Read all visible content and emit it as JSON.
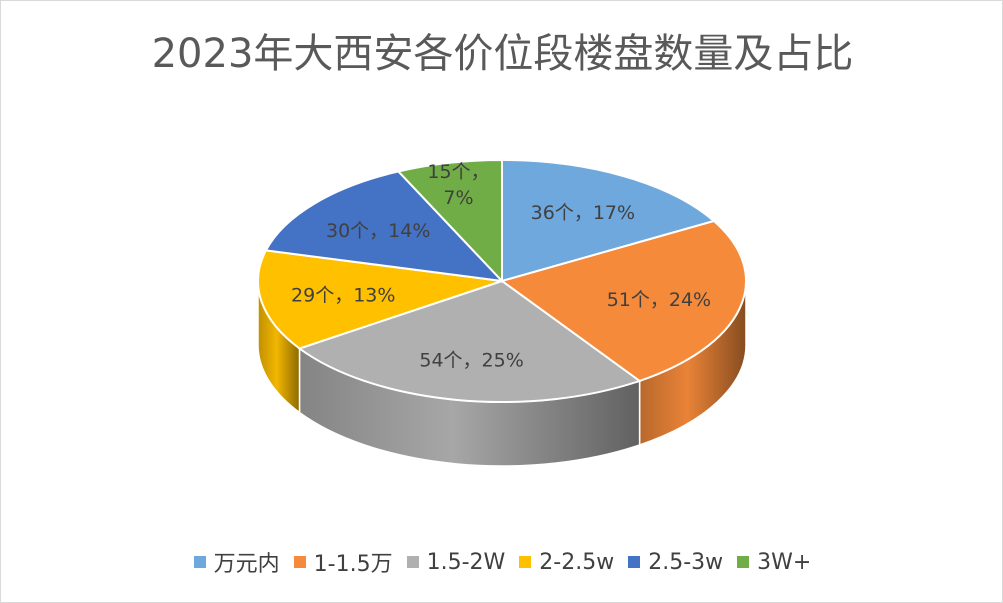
{
  "chart_data": {
    "type": "pie",
    "style": "3d",
    "title": "2023年大西安各价位段楼盘数量及占比",
    "labels": [
      "万元内",
      "1-1.5万",
      "1.5-2W",
      "2-2.5w",
      "2.5-3w",
      "3W+"
    ],
    "values": [
      36,
      51,
      54,
      29,
      30,
      15
    ],
    "percentages": [
      17,
      24,
      25,
      13,
      14,
      7
    ],
    "data_labels": [
      "36个，17%",
      "51个，24%",
      "54个，25%",
      "29个，13%",
      "30个，14%",
      "15个，7%"
    ],
    "colors": [
      "#6fa8dc",
      "#f58a3a",
      "#b0b0b0",
      "#ffc000",
      "#4472c4",
      "#70ad47"
    ],
    "legend_position": "bottom"
  }
}
